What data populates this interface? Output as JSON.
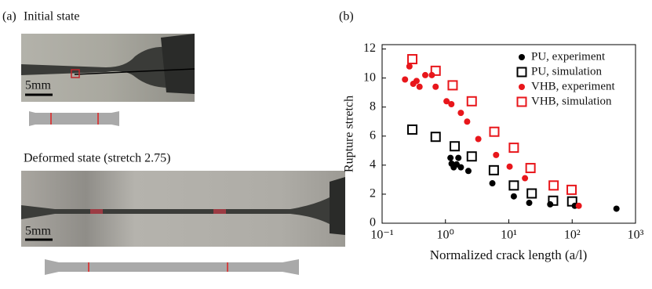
{
  "panel_a": {
    "label": "(a)",
    "initial_title": "Initial state",
    "initial_scale": "5mm",
    "deformed_title": "Deformed state (stretch 2.75)",
    "deformed_scale": "5mm"
  },
  "chart_data": {
    "type": "scatter",
    "panel_label": "(b)",
    "x_label": "Normalized crack length (a/l)",
    "y_label": "Rupture stretch",
    "xscale": "log",
    "xlim": [
      0.1,
      1000
    ],
    "xticks": [
      {
        "value": 0.1,
        "label": "10⁻¹"
      },
      {
        "value": 1,
        "label": "10⁰"
      },
      {
        "value": 10,
        "label": "10¹"
      },
      {
        "value": 100,
        "label": "10²"
      },
      {
        "value": 1000,
        "label": "10³"
      }
    ],
    "ylim": [
      0,
      12.3
    ],
    "yticks": [
      0,
      2,
      4,
      6,
      8,
      10,
      12
    ],
    "legend": "upper right",
    "series": [
      {
        "name": "PU, experiment",
        "color": "#000000",
        "marker": "circle",
        "x": [
          1.2,
          1.25,
          1.35,
          1.5,
          1.6,
          1.75,
          2.3,
          5.5,
          12,
          21,
          45,
          110,
          500
        ],
        "values": [
          4.5,
          4.1,
          3.85,
          4.05,
          4.5,
          3.85,
          3.6,
          2.75,
          1.85,
          1.4,
          1.3,
          1.2,
          1.0
        ]
      },
      {
        "name": "PU, simulation",
        "color": "#000000",
        "marker": "square",
        "x": [
          0.3,
          0.7,
          1.4,
          2.6,
          5.8,
          12,
          23,
          50,
          100
        ],
        "values": [
          6.45,
          5.95,
          5.3,
          4.6,
          3.65,
          2.6,
          2.05,
          1.55,
          1.5
        ]
      },
      {
        "name": "VHB, experiment",
        "color": "#e8161b",
        "marker": "circle",
        "x": [
          0.23,
          0.27,
          0.31,
          0.35,
          0.39,
          0.48,
          0.61,
          0.7,
          1.04,
          1.24,
          1.75,
          2.2,
          3.3,
          6.3,
          10.3,
          18,
          127
        ],
        "values": [
          9.9,
          10.8,
          9.6,
          9.8,
          9.4,
          10.2,
          10.2,
          9.4,
          8.4,
          8.2,
          7.6,
          7.0,
          5.8,
          4.7,
          3.9,
          3.1,
          1.2
        ]
      },
      {
        "name": "VHB, simulation",
        "color": "#e8161b",
        "marker": "square",
        "x": [
          0.3,
          0.7,
          1.3,
          2.6,
          5.9,
          12,
          22,
          51,
          98
        ],
        "values": [
          11.3,
          10.5,
          9.5,
          8.4,
          6.3,
          5.2,
          3.8,
          2.6,
          2.3
        ]
      }
    ]
  }
}
